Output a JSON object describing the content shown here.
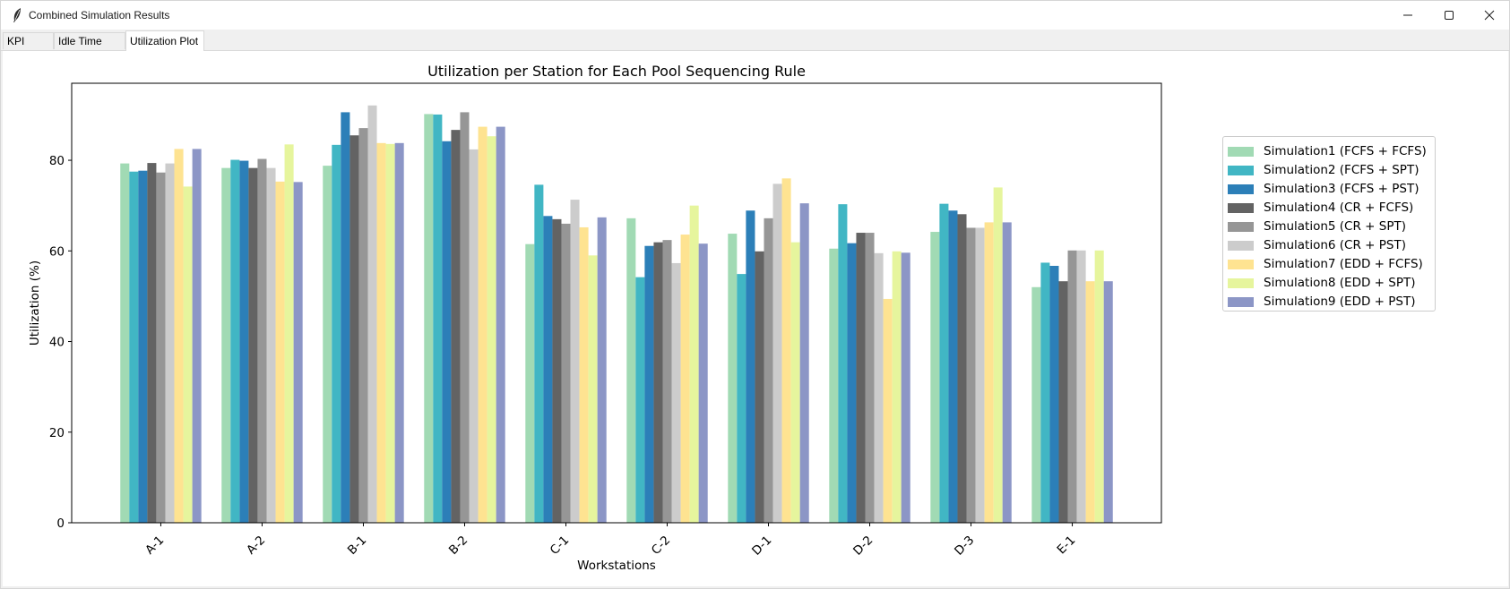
{
  "window": {
    "title": "Combined Simulation Results"
  },
  "tabs": [
    {
      "label": "KPI Table",
      "active": false
    },
    {
      "label": "Idle Time Plot",
      "active": false
    },
    {
      "label": "Utilization Plot",
      "active": true
    }
  ],
  "chart_data": {
    "type": "bar",
    "title": "Utilization per Station for Each Pool Sequencing Rule",
    "xlabel": "Workstations",
    "ylabel": "Utilization (%)",
    "ylim": [
      0,
      97
    ],
    "yticks": [
      0,
      20,
      40,
      60,
      80
    ],
    "grid": false,
    "legend_placement": "outside-right-top",
    "categories": [
      "A-1",
      "A-2",
      "B-1",
      "B-2",
      "C-1",
      "C-2",
      "D-1",
      "D-2",
      "D-3",
      "E-1"
    ],
    "series": [
      {
        "name": "Simulation1 (FCFS + FCFS)",
        "color": "#a1dab4",
        "values": [
          79.3,
          78.3,
          78.8,
          90.2,
          61.5,
          67.2,
          63.8,
          60.5,
          64.2,
          52.0
        ]
      },
      {
        "name": "Simulation2 (FCFS + SPT)",
        "color": "#41b6c4",
        "values": [
          77.5,
          80.1,
          83.4,
          90.1,
          74.6,
          54.2,
          54.9,
          70.3,
          70.4,
          57.4
        ]
      },
      {
        "name": "Simulation3 (FCFS + PST)",
        "color": "#2c7fb8",
        "values": [
          77.7,
          79.9,
          90.6,
          84.2,
          67.7,
          61.1,
          68.9,
          61.7,
          68.9,
          56.7
        ]
      },
      {
        "name": "Simulation4 (CR + FCFS)",
        "color": "#636363",
        "values": [
          79.4,
          78.3,
          85.5,
          86.7,
          67.0,
          61.9,
          59.9,
          64.0,
          68.1,
          53.3
        ]
      },
      {
        "name": "Simulation5 (CR + SPT)",
        "color": "#969696",
        "values": [
          77.3,
          80.3,
          87.1,
          90.6,
          66.0,
          62.4,
          67.2,
          64.0,
          65.1,
          60.1
        ]
      },
      {
        "name": "Simulation6 (CR + PST)",
        "color": "#cccccc",
        "values": [
          79.3,
          78.3,
          92.1,
          82.4,
          71.3,
          57.3,
          74.8,
          59.5,
          65.1,
          60.1
        ]
      },
      {
        "name": "Simulation7 (EDD + FCFS)",
        "color": "#fee391",
        "values": [
          82.5,
          75.3,
          83.8,
          87.4,
          65.2,
          63.6,
          76.0,
          49.4,
          66.3,
          53.3
        ]
      },
      {
        "name": "Simulation8 (EDD + SPT)",
        "color": "#e6f59d",
        "values": [
          74.2,
          83.5,
          83.6,
          85.3,
          59.0,
          70.0,
          61.9,
          59.9,
          74.0,
          60.1
        ]
      },
      {
        "name": "Simulation9 (EDD + PST)",
        "color": "#8c96c6",
        "values": [
          82.5,
          75.2,
          83.8,
          87.4,
          67.4,
          61.6,
          70.5,
          59.6,
          66.3,
          53.3
        ]
      }
    ]
  }
}
